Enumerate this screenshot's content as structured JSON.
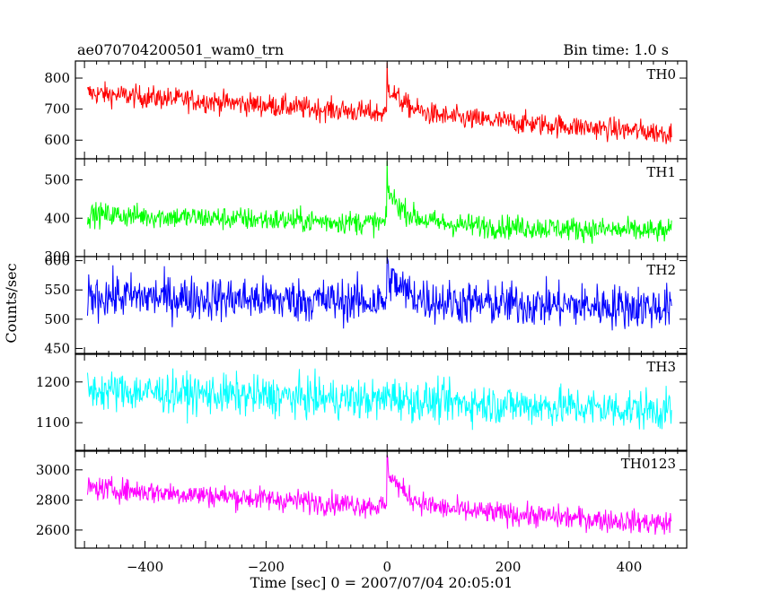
{
  "header": {
    "obs_id": "ae070704200501_wam0_trn",
    "bin_time": "Bin time: 1.0 s"
  },
  "axes": {
    "ylabel": "Counts/sec",
    "xlabel": "Time [sec] 0 = 2007/07/04 20:05:01"
  },
  "chart_data": {
    "type": "line",
    "x_range": [
      -515,
      495
    ],
    "x_ticks": [
      -400,
      -200,
      0,
      200,
      400
    ],
    "x_tick_labels": [
      "−400",
      "−200",
      "0",
      "200",
      "400"
    ],
    "time_span": [
      -495,
      470
    ],
    "burst_time": 0,
    "panels": [
      {
        "name": "TH0",
        "color": "#ff0000",
        "ylim": [
          540,
          855
        ],
        "yticks": [
          600,
          700,
          800
        ],
        "baseline_start": 752,
        "baseline_end": 622,
        "noise_amplitude": 26,
        "burst_peak": 850,
        "burst_decay_s": 30,
        "burst_excess": 95
      },
      {
        "name": "TH1",
        "color": "#00ff00",
        "ylim": [
          300,
          555
        ],
        "yticks": [
          300,
          400,
          500
        ],
        "baseline_start": 410,
        "baseline_end": 365,
        "noise_amplitude": 22,
        "burst_peak": 550,
        "burst_decay_s": 30,
        "burst_excess": 90
      },
      {
        "name": "TH2",
        "color": "#0000ff",
        "ylim": [
          440,
          607
        ],
        "yticks": [
          450,
          500,
          550,
          600
        ],
        "baseline_start": 540,
        "baseline_end": 520,
        "noise_amplitude": 27,
        "burst_peak": 607,
        "burst_decay_s": 30,
        "burst_excess": 50
      },
      {
        "name": "TH3",
        "color": "#00ffff",
        "ylim": [
          1030,
          1270
        ],
        "yticks": [
          1100,
          1200
        ],
        "baseline_start": 1180,
        "baseline_end": 1130,
        "noise_amplitude": 35,
        "burst_peak": 1200,
        "burst_decay_s": 20,
        "burst_excess": 20
      },
      {
        "name": "TH0123",
        "color": "#ff00ff",
        "ylim": [
          2480,
          3130
        ],
        "yticks": [
          2600,
          2800,
          3000
        ],
        "baseline_start": 2880,
        "baseline_end": 2640,
        "noise_amplitude": 55,
        "burst_peak": 3100,
        "burst_decay_s": 30,
        "burst_excess": 260
      }
    ]
  }
}
